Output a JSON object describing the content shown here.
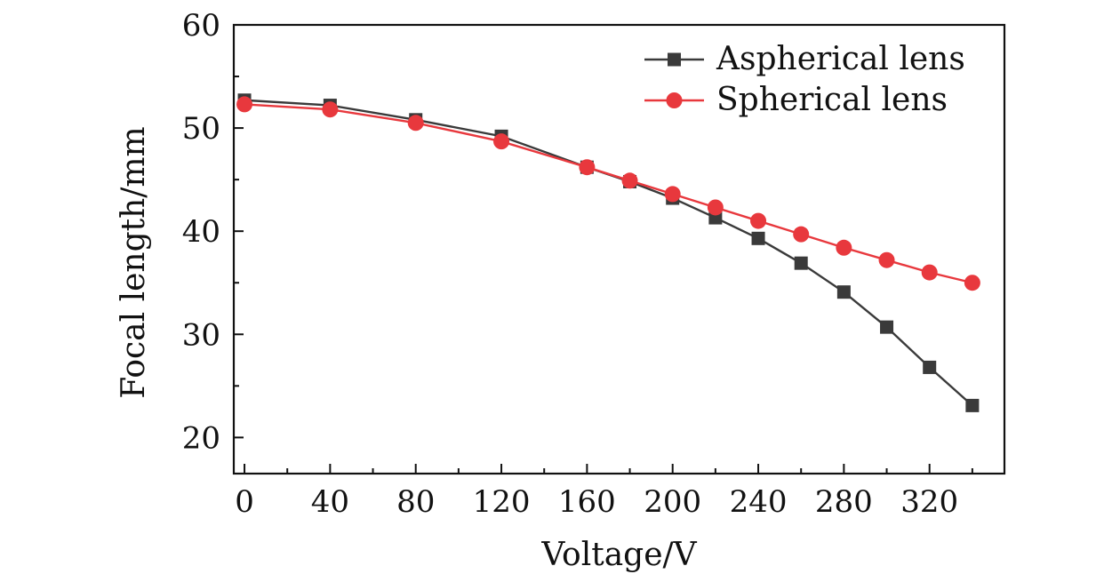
{
  "chart_data": {
    "type": "line",
    "title": "",
    "xlabel": "Voltage/V",
    "ylabel": "Focal length/mm",
    "xlim": [
      -5,
      355
    ],
    "ylim": [
      16.5,
      60
    ],
    "xticks": [
      0,
      40,
      80,
      120,
      160,
      200,
      240,
      280,
      320
    ],
    "yticks": [
      20,
      30,
      40,
      50,
      60
    ],
    "xtick_labels": [
      "0",
      "40",
      "80",
      "120",
      "160",
      "200",
      "240",
      "280",
      "320"
    ],
    "ytick_labels": [
      "20",
      "30",
      "40",
      "50",
      "60"
    ],
    "grid": false,
    "legend_position": "top-right",
    "x": [
      0,
      40,
      80,
      120,
      160,
      180,
      200,
      220,
      240,
      260,
      280,
      300,
      320,
      340
    ],
    "series": [
      {
        "name": "Aspherical lens",
        "marker": "square",
        "color": "#3a3a3a",
        "values": [
          52.7,
          52.2,
          50.8,
          49.2,
          46.2,
          44.8,
          43.2,
          41.3,
          39.3,
          36.9,
          34.1,
          30.7,
          26.8,
          23.1
        ]
      },
      {
        "name": "Spherical lens",
        "marker": "circle",
        "color": "#e8383d",
        "values": [
          52.3,
          51.8,
          50.5,
          48.7,
          46.2,
          44.9,
          43.6,
          42.3,
          41.0,
          39.7,
          38.4,
          37.2,
          36.0,
          35.0
        ]
      }
    ]
  }
}
